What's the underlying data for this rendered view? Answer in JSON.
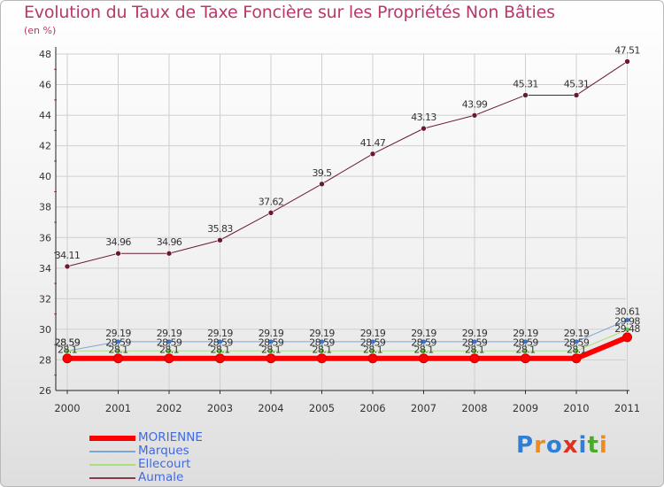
{
  "title": "Evolution du Taux de Taxe Foncière sur les Propriétés Non Bâties",
  "subtitle": "(en %)",
  "chart_data": {
    "type": "line",
    "title": "Evolution du Taux de Taxe Foncière sur les Propriétés Non Bâties",
    "ylabel": "(en %)",
    "xlabel": "",
    "ylim": [
      26,
      48
    ],
    "yticks": [
      "26",
      "28",
      "30",
      "32",
      "34",
      "36",
      "38",
      "40",
      "42",
      "44",
      "46",
      "48"
    ],
    "categories": [
      "2000",
      "2001",
      "2002",
      "2003",
      "2004",
      "2005",
      "2006",
      "2007",
      "2008",
      "2009",
      "2010",
      "2011"
    ],
    "grid": true,
    "series": [
      {
        "name": "Aumale",
        "color": "#6b1a2e",
        "marker": "#6b1a2e",
        "width": 1,
        "values": [
          34.11,
          34.96,
          34.96,
          35.83,
          37.62,
          39.5,
          41.47,
          43.13,
          43.99,
          45.31,
          45.31,
          47.51
        ],
        "labels": [
          "34.11",
          "34.96",
          "34.96",
          "35.83",
          "37.62",
          "39.5",
          "41.47",
          "43.13",
          "43.99",
          "45.31",
          "45.31",
          "47.51"
        ]
      },
      {
        "name": "Marques",
        "color": "#7ba7d7",
        "marker": "#3b72c4",
        "width": 1,
        "values": [
          28.59,
          29.19,
          29.19,
          29.19,
          29.19,
          29.19,
          29.19,
          29.19,
          29.19,
          29.19,
          29.19,
          30.61
        ],
        "labels": [
          "28.59",
          "29.19",
          "29.19",
          "29.19",
          "29.19",
          "29.19",
          "29.19",
          "29.19",
          "29.19",
          "29.19",
          "29.19",
          "30.61"
        ]
      },
      {
        "name": "Ellecourt",
        "color": "#a8e07c",
        "marker": "#67c23a",
        "width": 1,
        "values": [
          28.59,
          28.59,
          28.59,
          28.59,
          28.59,
          28.59,
          28.59,
          28.59,
          28.59,
          28.59,
          28.59,
          29.98
        ],
        "labels": [
          "28.59",
          "28.59",
          "28.59",
          "28.59",
          "28.59",
          "28.59",
          "28.59",
          "28.59",
          "28.59",
          "28.59",
          "28.59",
          "29.98"
        ]
      },
      {
        "name": "MORIENNE",
        "color": "#ff0000",
        "marker": "#ff0000",
        "width": 6,
        "values": [
          28.1,
          28.1,
          28.1,
          28.1,
          28.1,
          28.1,
          28.1,
          28.1,
          28.1,
          28.1,
          28.1,
          29.48
        ],
        "labels": [
          "28.1",
          "28.1",
          "28.1",
          "28.1",
          "28.1",
          "28.1",
          "28.1",
          "28.1",
          "28.1",
          "28.1",
          "28.1",
          "29.48"
        ]
      }
    ],
    "legend": [
      {
        "name": "MORIENNE",
        "color": "#ff0000",
        "thickness": 6
      },
      {
        "name": "Marques",
        "color": "#7ba7d7",
        "thickness": 2
      },
      {
        "name": "Ellecourt",
        "color": "#a8e07c",
        "thickness": 2
      },
      {
        "name": "Aumale",
        "color": "#8b3a4a",
        "thickness": 2
      }
    ]
  },
  "logo": {
    "text": "Proxiti",
    "colors": [
      "#2f7fd6",
      "#f08a1c",
      "#2f7fd6",
      "#e0301e",
      "#2f7fd6",
      "#4aaa2a",
      "#f08a1c"
    ]
  }
}
